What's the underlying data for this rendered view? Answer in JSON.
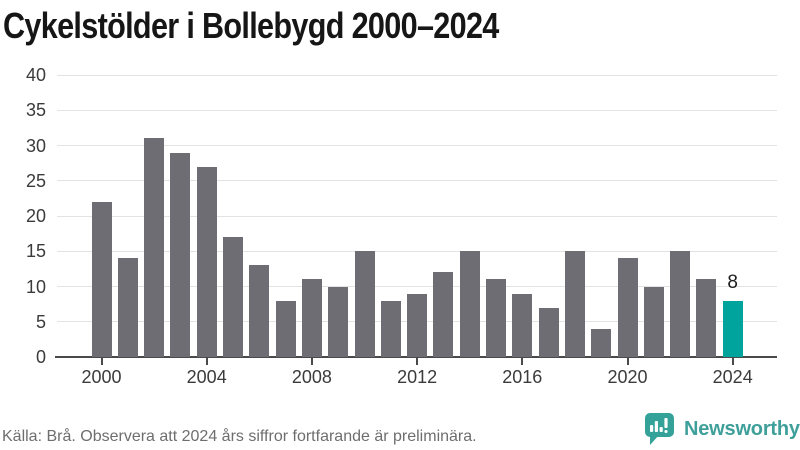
{
  "title": "Cykelstölder i Bollebygd 2000–2024",
  "footer": {
    "source_note": "Källa: Brå. Observera att 2024 års siffror fortfarande är preliminära."
  },
  "branding": {
    "logo_text": "Newsworthy",
    "logo_icon": "bar-chart-speech-bubble-icon"
  },
  "colors": {
    "bar": "#6d6d73",
    "highlight_bar": "#00a49c",
    "gridline": "#e3e3e3",
    "axis_line": "#4a4a4c",
    "axis_text": "#3b3b3b",
    "title_text": "#161616",
    "annotation_text": "#1d1d1d",
    "footer_text": "#6e6e6e",
    "brand_text": "#3f9f9a",
    "brand_icon": "#35a29a"
  },
  "chart_data": {
    "type": "bar",
    "title": "Cykelstölder i Bollebygd 2000–2024",
    "categories": [
      2000,
      2001,
      2002,
      2003,
      2004,
      2005,
      2006,
      2007,
      2008,
      2009,
      2010,
      2011,
      2012,
      2013,
      2014,
      2015,
      2016,
      2017,
      2018,
      2019,
      2020,
      2021,
      2022,
      2023,
      2024
    ],
    "values": [
      22,
      14,
      31,
      29,
      27,
      17,
      13,
      8,
      11,
      10,
      15,
      8,
      9,
      12,
      15,
      11,
      9,
      7,
      15,
      4,
      14,
      10,
      15,
      11,
      8
    ],
    "highlighted_category": 2024,
    "annotation": {
      "category": 2024,
      "text": "8"
    },
    "xlabel": "",
    "ylabel": "",
    "ylim": [
      0,
      40
    ],
    "ytick_step": 5,
    "xticks": [
      2000,
      2004,
      2008,
      2012,
      2016,
      2020,
      2024
    ],
    "grid": true,
    "legend": false
  }
}
